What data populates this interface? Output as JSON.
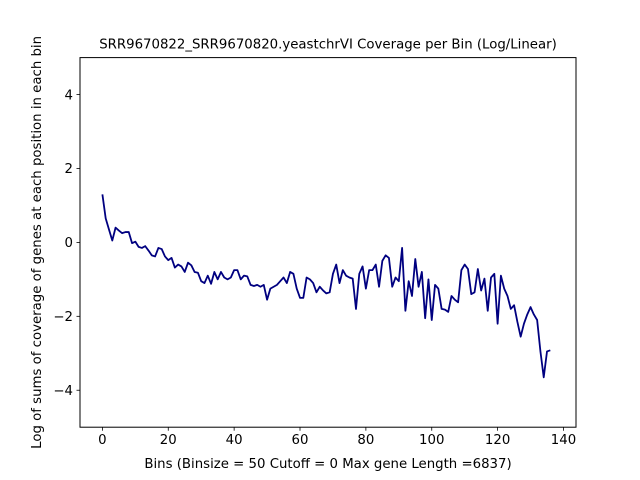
{
  "chart_data": {
    "type": "line",
    "title": "SRR9670822_SRR9670820.yeastchrVI Coverage per Bin (Log/Linear)",
    "xlabel": "Bins  (Binsize = 50 Cutoff = 0 Max gene Length =6837)",
    "ylabel": "Log of sums of coverage of genes at each position in each bin",
    "xlim": [
      -6.8,
      143.8
    ],
    "ylim": [
      -5,
      5
    ],
    "xticks": [
      0,
      20,
      40,
      60,
      80,
      100,
      120,
      140
    ],
    "yticks": [
      -4,
      -2,
      0,
      2,
      4
    ],
    "xtick_labels": [
      "0",
      "20",
      "40",
      "60",
      "80",
      "100",
      "120",
      "140"
    ],
    "ytick_labels": [
      "−4",
      "−2",
      "0",
      "2",
      "4"
    ],
    "grid": false,
    "line_color": "#000080",
    "series": [
      {
        "x": [
          0,
          1,
          2,
          3,
          4,
          5,
          6,
          7,
          8,
          9,
          10,
          11,
          12,
          13,
          14,
          15,
          16,
          17,
          18,
          19,
          20,
          21,
          22,
          23,
          24,
          25,
          26,
          27,
          28,
          29,
          30,
          31,
          32,
          33,
          34,
          35,
          36,
          37,
          38,
          39,
          40,
          41,
          42,
          43,
          44,
          45,
          46,
          47,
          48,
          49,
          50,
          51,
          52,
          53,
          54,
          55,
          56,
          57,
          58,
          59,
          60,
          61,
          62,
          63,
          64,
          65,
          66,
          67,
          68,
          69,
          70,
          71,
          72,
          73,
          74,
          75,
          76,
          77,
          78,
          79,
          80,
          81,
          82,
          83,
          84,
          85,
          86,
          87,
          88,
          89,
          90,
          91,
          92,
          93,
          94,
          95,
          96,
          97,
          98,
          99,
          100,
          101,
          102,
          103,
          104,
          105,
          106,
          107,
          108,
          109,
          110,
          111,
          112,
          113,
          114,
          115,
          116,
          117,
          118,
          119,
          120,
          121,
          122,
          123,
          124,
          125,
          126,
          127,
          128,
          129,
          130,
          131,
          132,
          133,
          134,
          135,
          136
        ],
        "values": [
          1.3,
          0.65,
          0.35,
          0.05,
          0.4,
          0.32,
          0.25,
          0.28,
          0.28,
          -0.02,
          0.02,
          -0.12,
          -0.15,
          -0.1,
          -0.22,
          -0.35,
          -0.38,
          -0.15,
          -0.18,
          -0.38,
          -0.48,
          -0.42,
          -0.68,
          -0.6,
          -0.65,
          -0.8,
          -0.55,
          -0.62,
          -0.8,
          -0.82,
          -1.05,
          -1.1,
          -0.9,
          -1.12,
          -0.8,
          -1.0,
          -0.8,
          -0.95,
          -1.0,
          -0.95,
          -0.75,
          -0.75,
          -1.0,
          -0.9,
          -0.92,
          -1.15,
          -1.18,
          -1.15,
          -1.2,
          -1.15,
          -1.55,
          -1.25,
          -1.2,
          -1.15,
          -1.05,
          -0.95,
          -1.1,
          -0.8,
          -0.85,
          -1.25,
          -1.5,
          -1.5,
          -0.95,
          -1.0,
          -1.1,
          -1.35,
          -1.2,
          -1.3,
          -1.38,
          -1.35,
          -0.85,
          -0.6,
          -1.1,
          -0.75,
          -0.9,
          -0.95,
          -0.98,
          -1.8,
          -0.85,
          -0.65,
          -1.25,
          -0.75,
          -0.75,
          -0.6,
          -1.2,
          -0.5,
          -0.35,
          -0.42,
          -1.2,
          -0.95,
          -1.05,
          -0.15,
          -1.85,
          -1.05,
          -1.45,
          -0.45,
          -1.2,
          -0.8,
          -2.05,
          -1.0,
          -2.1,
          -1.15,
          -1.25,
          -1.8,
          -1.82,
          -1.88,
          -1.45,
          -1.55,
          -1.62,
          -0.75,
          -0.6,
          -0.72,
          -1.4,
          -1.35,
          -0.72,
          -1.3,
          -0.98,
          -1.85,
          -0.95,
          -0.85,
          -2.2,
          -0.9,
          -1.25,
          -1.45,
          -1.8,
          -1.7,
          -2.15,
          -2.55,
          -2.2,
          -1.95,
          -1.75,
          -1.95,
          -2.1,
          -2.95,
          -3.65,
          -2.95,
          -2.92
        ]
      }
    ]
  }
}
